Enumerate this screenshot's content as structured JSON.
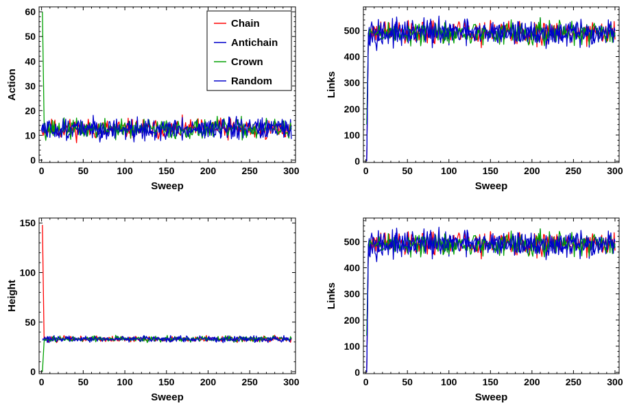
{
  "chart_data": [
    {
      "type": "line",
      "xlabel": "Sweep",
      "ylabel": "Action",
      "xlim": [
        -3,
        305
      ],
      "ylim": [
        -1,
        62
      ],
      "xticks": [
        0,
        50,
        100,
        150,
        200,
        250,
        300
      ],
      "yticks": [
        0,
        10,
        20,
        30,
        40,
        50,
        60
      ],
      "legend": {
        "placement": "top-right",
        "entries": [
          "Chain",
          "Antichain",
          "Crown",
          "Random"
        ]
      },
      "series": [
        {
          "name": "Chain",
          "color": "#ff0000",
          "start": [
            [
              0,
              12
            ],
            [
              1,
              11
            ]
          ],
          "mean": 12.5,
          "amp": 3.5,
          "seed": 11
        },
        {
          "name": "Antichain",
          "color": "#0000cc",
          "start": [
            [
              0,
              13
            ]
          ],
          "mean": 12.5,
          "amp": 3.5,
          "seed": 23
        },
        {
          "name": "Crown",
          "color": "#00a000",
          "start": [
            [
              1,
              60
            ],
            [
              3,
              16
            ]
          ],
          "mean": 12.5,
          "amp": 3.5,
          "seed": 37
        },
        {
          "name": "Random",
          "color": "#0000cc",
          "start": [
            [
              0,
              12
            ]
          ],
          "mean": 12.5,
          "amp": 3.5,
          "seed": 51
        }
      ]
    },
    {
      "type": "line",
      "xlabel": "Sweep",
      "ylabel": "Links",
      "xlim": [
        -3,
        305
      ],
      "ylim": [
        -5,
        590
      ],
      "xticks": [
        0,
        50,
        100,
        150,
        200,
        250,
        300
      ],
      "yticks": [
        0,
        100,
        200,
        300,
        400,
        500
      ],
      "series": [
        {
          "name": "Chain",
          "color": "#ff0000",
          "start": [
            [
              1,
              0
            ],
            [
              3,
              480
            ]
          ],
          "mean": 490,
          "amp": 40,
          "seed": 61
        },
        {
          "name": "Antichain",
          "color": "#0000cc",
          "start": [
            [
              1,
              0
            ],
            [
              3,
              485
            ]
          ],
          "mean": 490,
          "amp": 40,
          "seed": 73
        },
        {
          "name": "Crown",
          "color": "#00a000",
          "start": [
            [
              1,
              140
            ],
            [
              3,
              470
            ]
          ],
          "mean": 490,
          "amp": 40,
          "seed": 89
        },
        {
          "name": "Random",
          "color": "#0000cc",
          "start": [
            [
              1,
              0
            ],
            [
              3,
              490
            ]
          ],
          "mean": 490,
          "amp": 40,
          "seed": 97
        }
      ]
    },
    {
      "type": "line",
      "xlabel": "Sweep",
      "ylabel": "Height",
      "xlim": [
        -3,
        305
      ],
      "ylim": [
        -2,
        155
      ],
      "xticks": [
        0,
        50,
        100,
        150,
        200,
        250,
        300
      ],
      "yticks": [
        0,
        50,
        100,
        150
      ],
      "series": [
        {
          "name": "Chain",
          "color": "#ff0000",
          "start": [
            [
              1,
              148
            ],
            [
              3,
              33
            ]
          ],
          "mean": 33,
          "amp": 2.5,
          "seed": 101
        },
        {
          "name": "Antichain",
          "color": "#0000cc",
          "start": [
            [
              1,
              32
            ],
            [
              3,
              32
            ]
          ],
          "mean": 33,
          "amp": 2.5,
          "seed": 113
        },
        {
          "name": "Crown",
          "color": "#00a000",
          "start": [
            [
              1,
              0
            ],
            [
              3,
              30
            ]
          ],
          "mean": 33,
          "amp": 2.5,
          "seed": 127
        },
        {
          "name": "Random",
          "color": "#0000cc",
          "start": [
            [
              1,
              33
            ],
            [
              3,
              33
            ]
          ],
          "mean": 33,
          "amp": 2.5,
          "seed": 139
        }
      ]
    },
    {
      "type": "line",
      "xlabel": "Sweep",
      "ylabel": "Links",
      "xlim": [
        -3,
        305
      ],
      "ylim": [
        -5,
        590
      ],
      "xticks": [
        0,
        50,
        100,
        150,
        200,
        250,
        300
      ],
      "yticks": [
        0,
        100,
        200,
        300,
        400,
        500
      ],
      "series": [
        {
          "name": "Chain",
          "color": "#ff0000",
          "start": [
            [
              1,
              0
            ],
            [
              3,
              480
            ]
          ],
          "mean": 490,
          "amp": 40,
          "seed": 61
        },
        {
          "name": "Antichain",
          "color": "#0000cc",
          "start": [
            [
              1,
              0
            ],
            [
              3,
              485
            ]
          ],
          "mean": 490,
          "amp": 40,
          "seed": 73
        },
        {
          "name": "Crown",
          "color": "#00a000",
          "start": [
            [
              1,
              140
            ],
            [
              3,
              470
            ]
          ],
          "mean": 490,
          "amp": 40,
          "seed": 89
        },
        {
          "name": "Random",
          "color": "#0000cc",
          "start": [
            [
              1,
              0
            ],
            [
              3,
              490
            ]
          ],
          "mean": 490,
          "amp": 40,
          "seed": 97
        }
      ]
    }
  ]
}
